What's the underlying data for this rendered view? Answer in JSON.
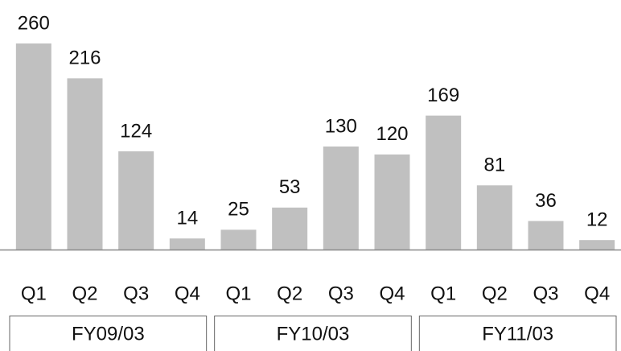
{
  "chart_data": {
    "type": "bar",
    "categories": [
      "Q1",
      "Q2",
      "Q3",
      "Q4",
      "Q1",
      "Q2",
      "Q3",
      "Q4",
      "Q1",
      "Q2",
      "Q3",
      "Q4"
    ],
    "values": [
      260,
      216,
      124,
      14,
      25,
      53,
      130,
      120,
      169,
      81,
      36,
      12
    ],
    "groups": [
      "FY09/03",
      "FY10/03",
      "FY11/03"
    ],
    "color": "#c0c0c0"
  }
}
